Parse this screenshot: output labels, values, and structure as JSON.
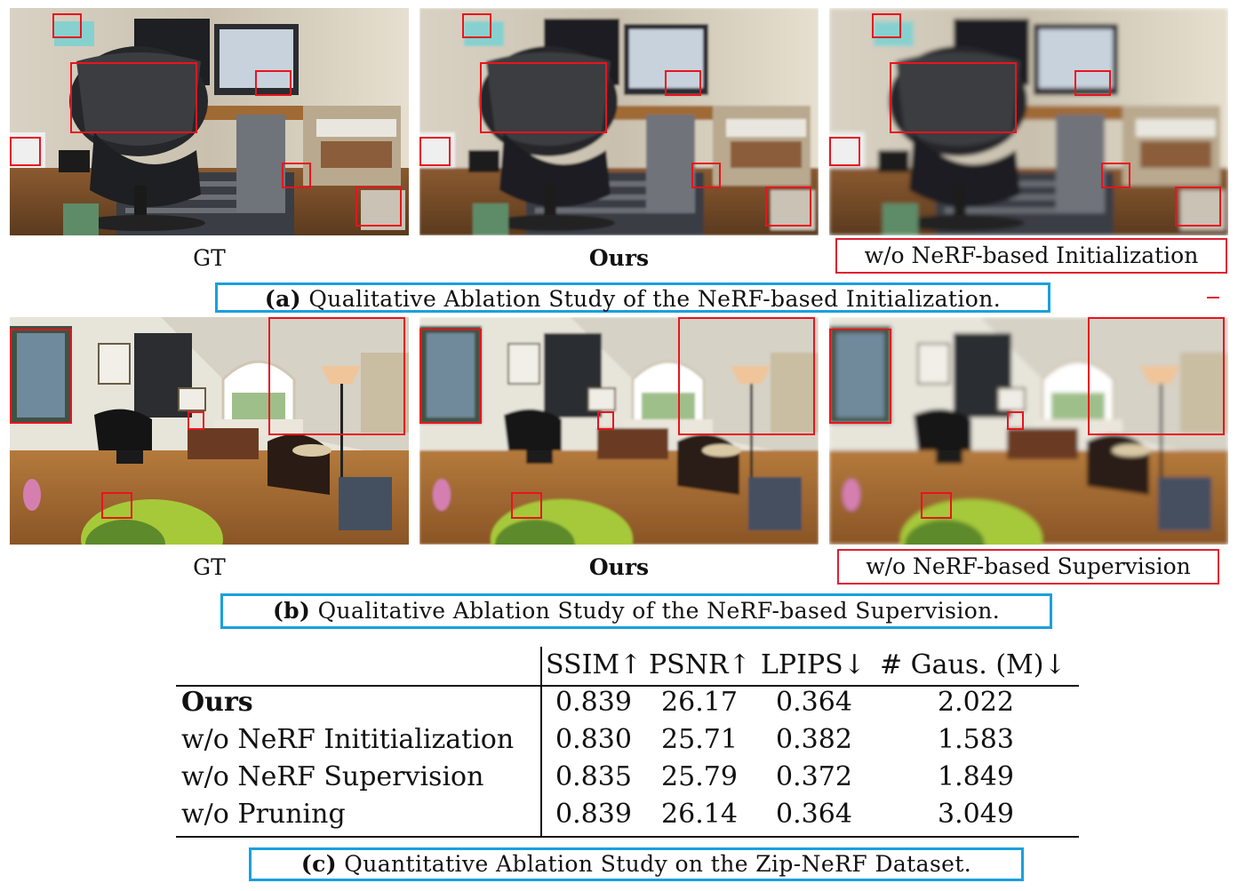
{
  "panel_a": {
    "labels": {
      "gt": "GT",
      "ours": "Ours",
      "ablation": "w/o NeRF-based Initialization"
    },
    "caption_tag": "(a)",
    "caption_text": "Qualitative Ablation Study of the NeRF-based Initialization."
  },
  "panel_b": {
    "labels": {
      "gt": "GT",
      "ours": "Ours",
      "ablation": "w/o NeRF-based Supervision"
    },
    "caption_tag": "(b)",
    "caption_text": "Qualitative Ablation Study of the NeRF-based Supervision."
  },
  "panel_c": {
    "caption_tag": "(c)",
    "caption_text": "Quantitative Ablation Study on the Zip-NeRF Dataset.",
    "headers": [
      "SSIM↑",
      "PSNR↑",
      "LPIPS↓",
      "# Gaus. (M)↓"
    ],
    "rows": [
      {
        "name": "Ours",
        "values": [
          "0.839",
          "26.17",
          "0.364",
          "2.022"
        ]
      },
      {
        "name": "w/o NeRF Inititialization",
        "values": [
          "0.830",
          "25.71",
          "0.382",
          "1.583"
        ]
      },
      {
        "name": "w/o NeRF Supervision",
        "values": [
          "0.835",
          "25.79",
          "0.372",
          "1.849"
        ]
      },
      {
        "name": "w/o Pruning",
        "values": [
          "0.839",
          "26.14",
          "0.364",
          "3.049"
        ]
      }
    ]
  },
  "colors": {
    "zoom_box": "#e8141e",
    "caption_border": "#1aa0dc"
  }
}
